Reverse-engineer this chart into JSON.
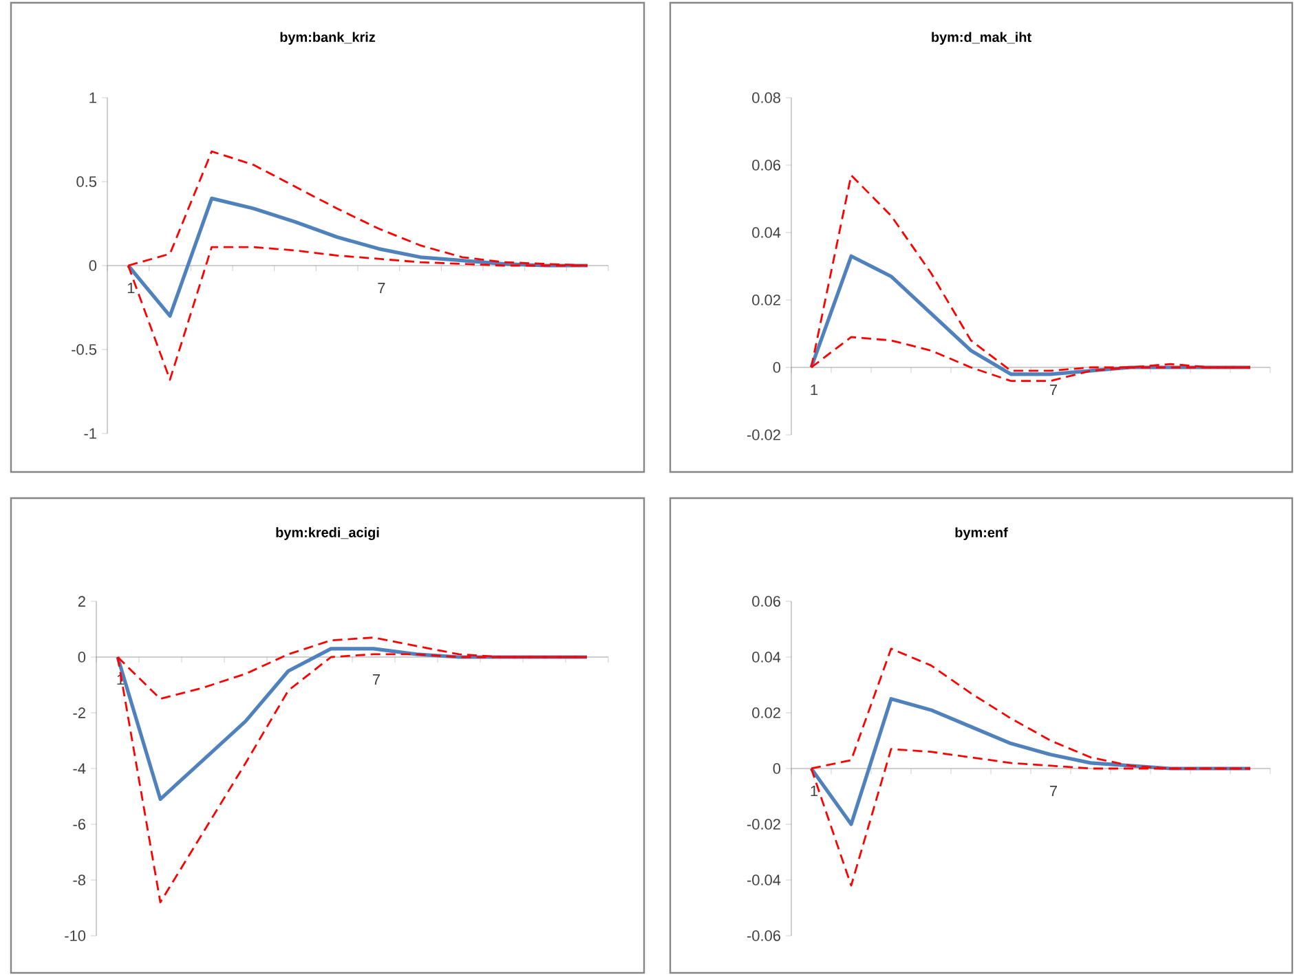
{
  "chart_data": [
    {
      "type": "line",
      "title": "bym:bank_kriz",
      "categories": [
        "1",
        null,
        null,
        null,
        null,
        null,
        "7",
        null,
        null,
        null,
        null,
        null
      ],
      "ylim": [
        -1,
        1
      ],
      "yticks": [
        -1,
        -0.5,
        0,
        0.5,
        1
      ],
      "series": [
        {
          "color": "#4f81bd",
          "line_style": "solid",
          "values": [
            0,
            -0.3,
            0.4,
            0.34,
            0.26,
            0.17,
            0.1,
            0.05,
            0.03,
            0.01,
            0,
            0
          ]
        },
        {
          "color": "#ff0000",
          "line_style": "dashed",
          "values": [
            0,
            0.07,
            0.68,
            0.6,
            0.47,
            0.34,
            0.22,
            0.12,
            0.05,
            0.02,
            0.01,
            0
          ]
        },
        {
          "color": "#ff0000",
          "line_style": "dashed",
          "values": [
            0,
            -0.68,
            0.11,
            0.11,
            0.09,
            0.06,
            0.04,
            0.02,
            0.01,
            0,
            0,
            0
          ]
        }
      ]
    },
    {
      "type": "line",
      "title": "bym:d_mak_iht",
      "categories": [
        "1",
        null,
        null,
        null,
        null,
        null,
        "7",
        null,
        null,
        null,
        null,
        null
      ],
      "ylim": [
        -0.02,
        0.08
      ],
      "yticks": [
        -0.02,
        0,
        0.02,
        0.04,
        0.06,
        0.08
      ],
      "series": [
        {
          "color": "#4f81bd",
          "line_style": "solid",
          "values": [
            0,
            0.033,
            0.027,
            0.016,
            0.005,
            -0.002,
            -0.002,
            -0.001,
            0,
            0,
            0,
            0
          ]
        },
        {
          "color": "#ff0000",
          "line_style": "dashed",
          "values": [
            0,
            0.057,
            0.045,
            0.028,
            0.008,
            -0.001,
            -0.001,
            0,
            0,
            0.001,
            0,
            0
          ]
        },
        {
          "color": "#ff0000",
          "line_style": "dashed",
          "values": [
            0,
            0.009,
            0.008,
            0.005,
            0,
            -0.004,
            -0.004,
            -0.001,
            0,
            0,
            0,
            0
          ]
        }
      ]
    },
    {
      "type": "line",
      "title": "bym:kredi_acigi",
      "categories": [
        "1",
        null,
        null,
        null,
        null,
        null,
        "7",
        null,
        null,
        null,
        null,
        null
      ],
      "ylim": [
        -10,
        2
      ],
      "yticks": [
        -10,
        -8,
        -6,
        -4,
        -2,
        0,
        2
      ],
      "series": [
        {
          "color": "#4f81bd",
          "line_style": "solid",
          "values": [
            0,
            -5.1,
            -3.7,
            -2.3,
            -0.5,
            0.3,
            0.3,
            0.1,
            0,
            0,
            0,
            0
          ]
        },
        {
          "color": "#ff0000",
          "line_style": "dashed",
          "values": [
            0,
            -1.5,
            -1.1,
            -0.6,
            0.1,
            0.6,
            0.7,
            0.4,
            0.1,
            0,
            0,
            0
          ]
        },
        {
          "color": "#ff0000",
          "line_style": "dashed",
          "values": [
            0,
            -8.8,
            -6.3,
            -3.8,
            -1.2,
            0,
            0.1,
            0.1,
            0,
            0,
            0,
            0
          ]
        }
      ]
    },
    {
      "type": "line",
      "title": "bym:enf",
      "categories": [
        "1",
        null,
        null,
        null,
        null,
        null,
        "7",
        null,
        null,
        null,
        null,
        null
      ],
      "ylim": [
        -0.06,
        0.06
      ],
      "yticks": [
        -0.06,
        -0.04,
        -0.02,
        0,
        0.02,
        0.04,
        0.06
      ],
      "series": [
        {
          "color": "#4f81bd",
          "line_style": "solid",
          "values": [
            0,
            -0.02,
            0.025,
            0.021,
            0.015,
            0.009,
            0.005,
            0.002,
            0.001,
            0,
            0,
            0
          ]
        },
        {
          "color": "#ff0000",
          "line_style": "dashed",
          "values": [
            0,
            0.003,
            0.043,
            0.037,
            0.027,
            0.018,
            0.01,
            0.004,
            0.001,
            0,
            0,
            0
          ]
        },
        {
          "color": "#ff0000",
          "line_style": "dashed",
          "values": [
            0,
            -0.042,
            0.007,
            0.006,
            0.004,
            0.002,
            0.001,
            0,
            0,
            0,
            0,
            0
          ]
        }
      ]
    }
  ]
}
